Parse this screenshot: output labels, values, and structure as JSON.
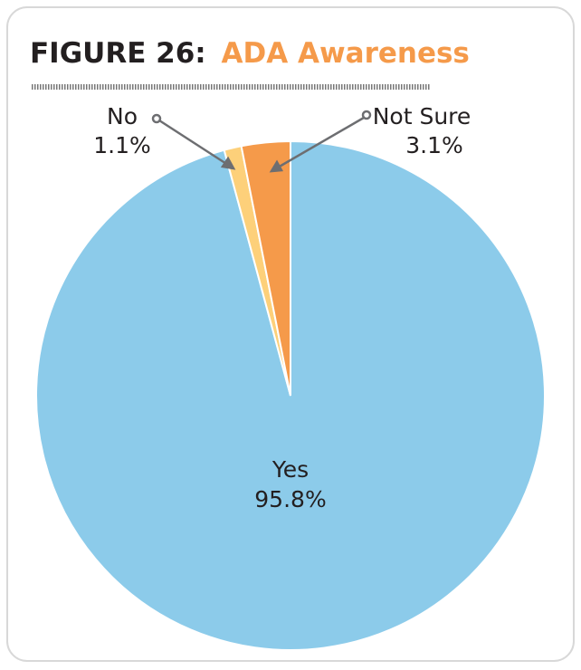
{
  "chart_data": {
    "type": "pie",
    "figure_label": "FIGURE 26:",
    "title": "ADA Awareness",
    "categories": [
      "Yes",
      "No",
      "Not Sure"
    ],
    "values": [
      95.8,
      1.1,
      3.1
    ],
    "value_labels": [
      "95.8%",
      "1.1%",
      "3.1%"
    ],
    "colors": [
      "#8ccbea",
      "#fdd07a",
      "#f59a4a"
    ]
  }
}
